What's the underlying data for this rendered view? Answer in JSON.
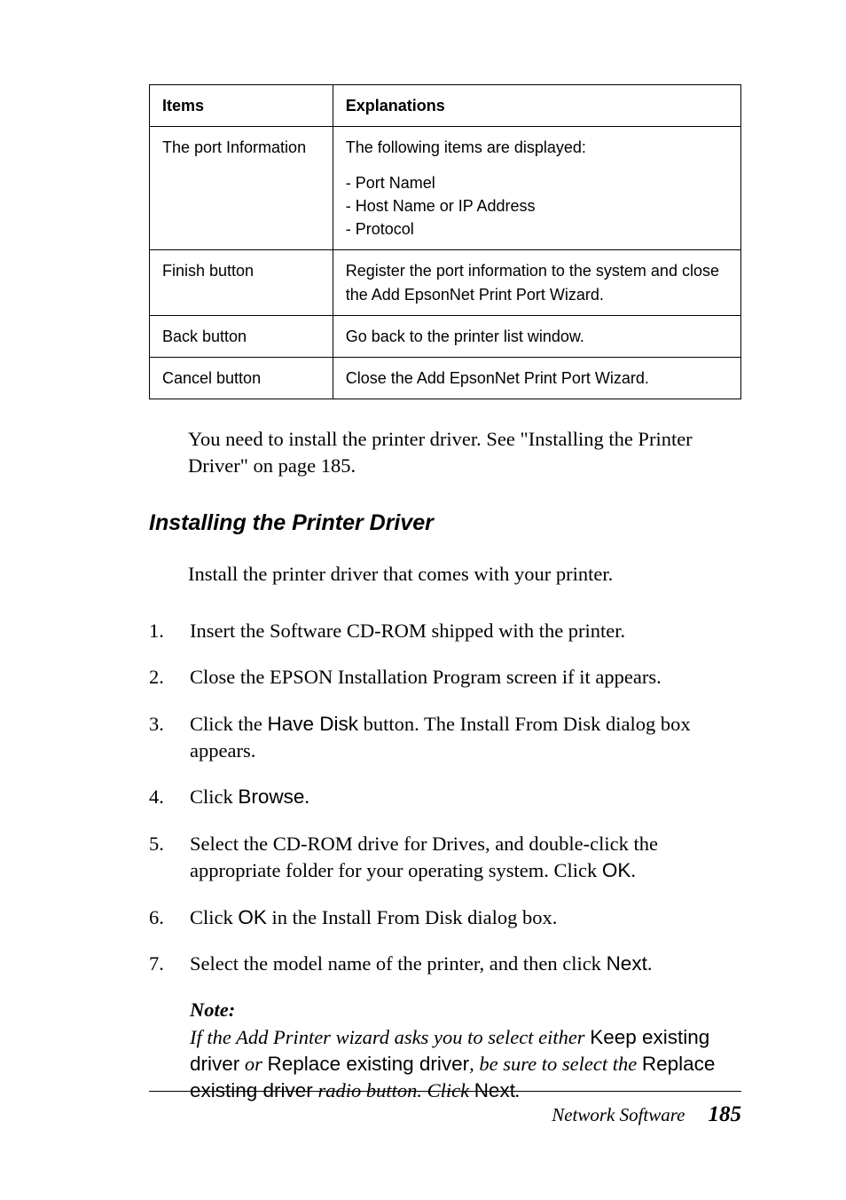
{
  "table": {
    "headers": [
      "Items",
      "Explanations"
    ],
    "rows": [
      {
        "item": "The port Information",
        "explanation_intro": "The following items are displayed:",
        "explanation_lines": "- Port Namel\n- Host Name or IP Address\n- Protocol"
      },
      {
        "item": "Finish button",
        "explanation": "Register the port information to the system and close the Add EpsonNet Print Port Wizard."
      },
      {
        "item": "Back button",
        "explanation": "Go back to the printer list window."
      },
      {
        "item": "Cancel button",
        "explanation": "Close the Add EpsonNet Print Port Wizard."
      }
    ]
  },
  "lead_paragraph": "You need to install the printer driver. See  \"Installing the Printer Driver\" on page 185.",
  "section_heading": "Installing the Printer Driver",
  "intro_paragraph": "Install the printer driver that comes with your printer.",
  "steps": [
    {
      "num": "1.",
      "parts": [
        {
          "t": "Insert the Software CD-ROM shipped with the printer."
        }
      ]
    },
    {
      "num": "2.",
      "parts": [
        {
          "t": "Close the EPSON Installation Program screen if it appears."
        }
      ]
    },
    {
      "num": "3.",
      "parts": [
        {
          "t": "Click the "
        },
        {
          "t": "Have Disk",
          "sans": true
        },
        {
          "t": " button. The Install From Disk dialog box appears."
        }
      ]
    },
    {
      "num": "4.",
      "parts": [
        {
          "t": "Click "
        },
        {
          "t": "Browse",
          "sans": true
        },
        {
          "t": "."
        }
      ]
    },
    {
      "num": "5.",
      "parts": [
        {
          "t": "Select the CD-ROM drive for Drives, and double-click the appropriate folder for your operating system. Click "
        },
        {
          "t": "OK",
          "sans": true
        },
        {
          "t": "."
        }
      ]
    },
    {
      "num": "6.",
      "parts": [
        {
          "t": "Click "
        },
        {
          "t": "OK",
          "sans": true
        },
        {
          "t": " in the Install From Disk dialog box."
        }
      ]
    },
    {
      "num": "7.",
      "parts": [
        {
          "t": "Select the model name of the printer, and then click "
        },
        {
          "t": "Next",
          "sans": true
        },
        {
          "t": "."
        }
      ]
    }
  ],
  "note": {
    "label": "Note:",
    "parts": [
      {
        "t": "If the Add Printer wizard asks you to select either ",
        "i": true
      },
      {
        "t": "Keep existing driver",
        "sans": true
      },
      {
        "t": " or ",
        "i": true
      },
      {
        "t": "Replace existing driver",
        "sans": true
      },
      {
        "t": ", be sure to select the ",
        "i": true
      },
      {
        "t": "Replace existing driver",
        "sans": true
      },
      {
        "t": " radio button. Click ",
        "i": true
      },
      {
        "t": "Next",
        "sans": true
      },
      {
        "t": ".",
        "i": true
      }
    ]
  },
  "footer": {
    "title": "Network Software",
    "page": "185"
  }
}
